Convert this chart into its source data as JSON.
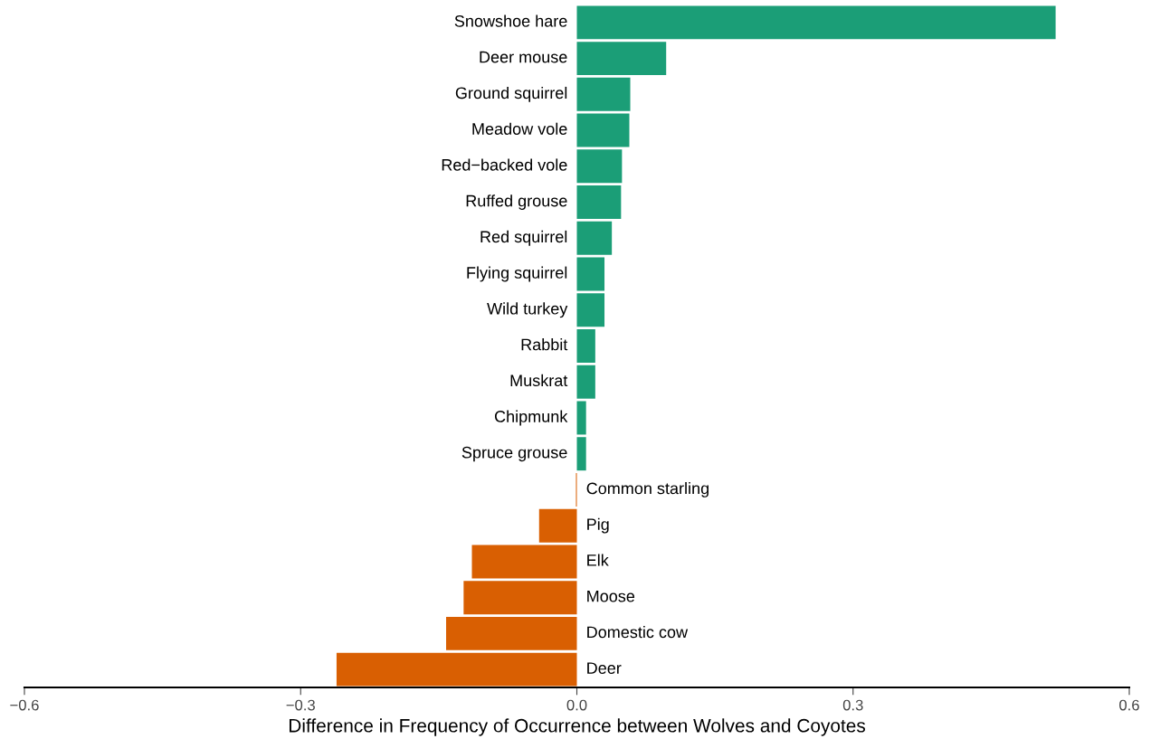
{
  "chart_data": {
    "type": "bar",
    "orientation": "horizontal",
    "xlabel": "Difference in Frequency of Occurrence between Wolves and Coyotes",
    "categories": [
      "Snowshoe hare",
      "Deer mouse",
      "Ground squirrel",
      "Meadow vole",
      "Red−backed vole",
      "Ruffed grouse",
      "Red squirrel",
      "Flying squirrel",
      "Wild turkey",
      "Rabbit",
      "Muskrat",
      "Chipmunk",
      "Spruce grouse",
      "Common starling",
      "Pig",
      "Elk",
      "Moose",
      "Domestic cow",
      "Deer"
    ],
    "values": [
      0.52,
      0.097,
      0.058,
      0.057,
      0.049,
      0.048,
      0.038,
      0.03,
      0.03,
      0.02,
      0.02,
      0.01,
      0.01,
      -0.001,
      -0.041,
      -0.114,
      -0.123,
      -0.142,
      -0.261
    ],
    "colors": [
      "#1b9e77",
      "#1b9e77",
      "#1b9e77",
      "#1b9e77",
      "#1b9e77",
      "#1b9e77",
      "#1b9e77",
      "#1b9e77",
      "#1b9e77",
      "#1b9e77",
      "#1b9e77",
      "#1b9e77",
      "#1b9e77",
      "#d95f02",
      "#d95f02",
      "#d95f02",
      "#d95f02",
      "#d95f02",
      "#d95f02"
    ],
    "xlim": [
      -0.6,
      0.6
    ],
    "xticks": [
      {
        "value": -0.6,
        "label": "−0.6"
      },
      {
        "value": -0.3,
        "label": "−0.3"
      },
      {
        "value": 0.0,
        "label": "0.0"
      },
      {
        "value": 0.3,
        "label": "0.3"
      },
      {
        "value": 0.6,
        "label": "0.6"
      }
    ],
    "tick_labels": "x",
    "grid": false,
    "legend": false
  }
}
